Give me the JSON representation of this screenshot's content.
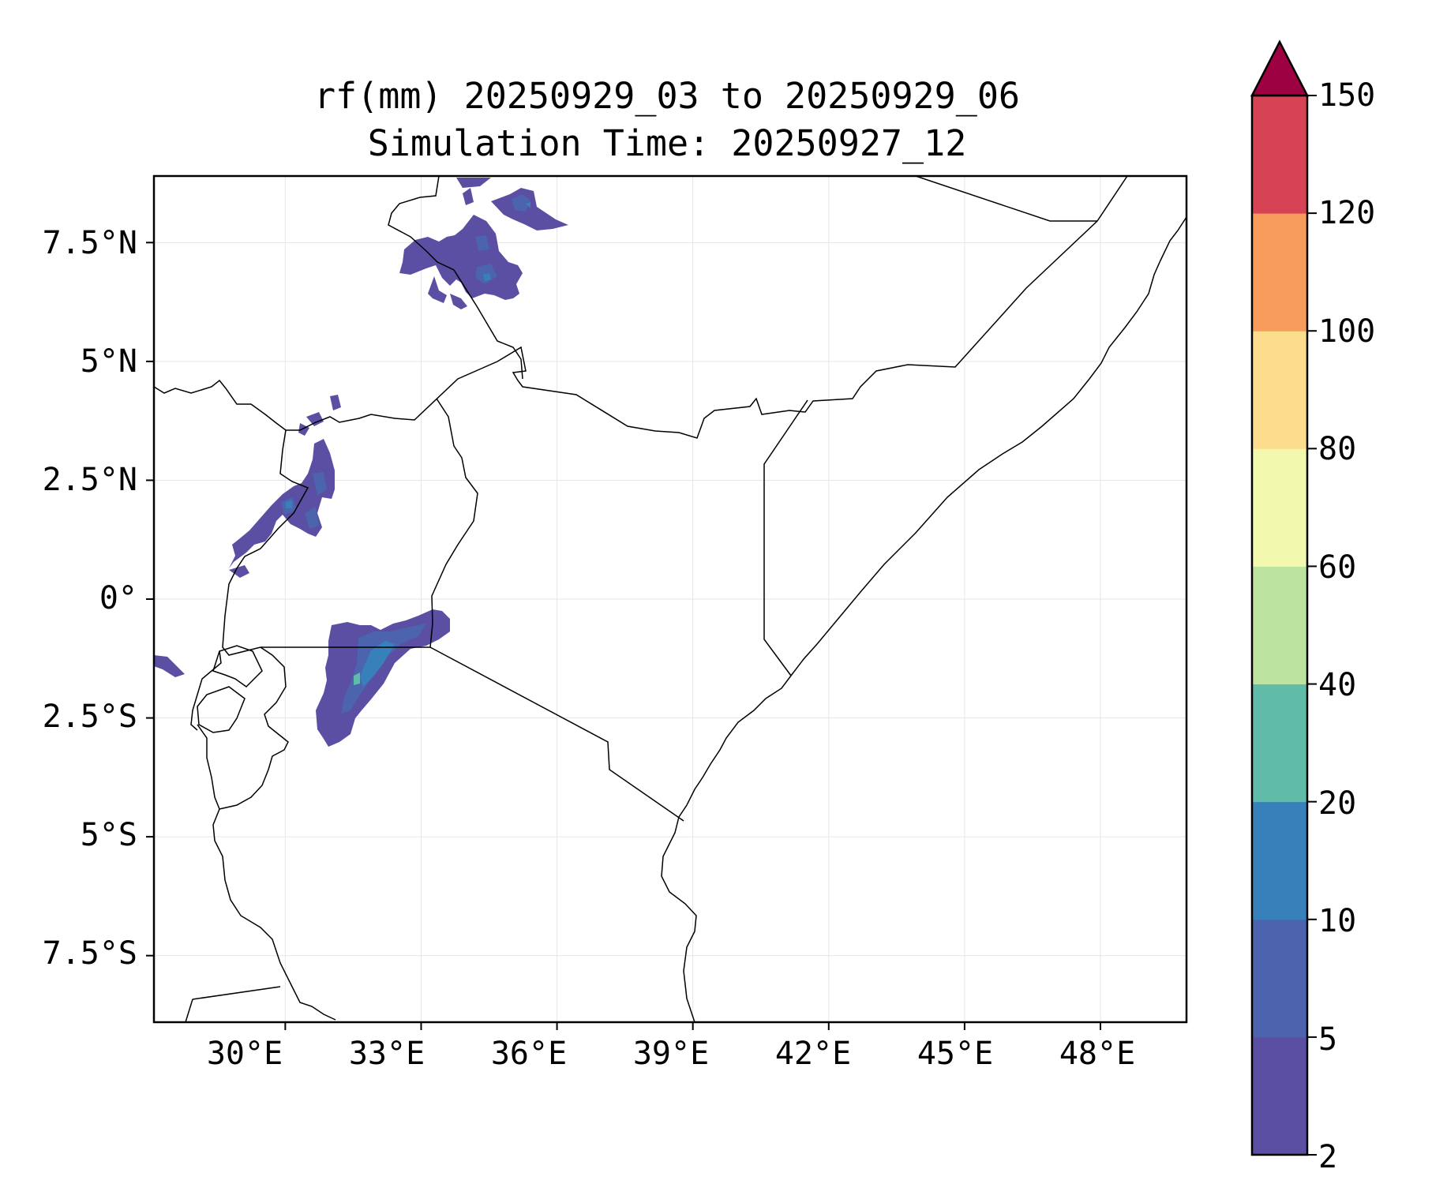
{
  "title": {
    "line1": "rf(mm) 20250929_03 to 20250929_06",
    "line2": "Simulation Time: 20250927_12"
  },
  "map": {
    "extent_lon": [
      27.1,
      49.9
    ],
    "extent_lat": [
      -8.9,
      8.9
    ],
    "lat_ticks": [
      {
        "value": 7.5,
        "label": "7.5°N"
      },
      {
        "value": 5,
        "label": "5°N"
      },
      {
        "value": 2.5,
        "label": "2.5°N"
      },
      {
        "value": 0,
        "label": "0°"
      },
      {
        "value": -2.5,
        "label": "2.5°S"
      },
      {
        "value": -5,
        "label": "5°S"
      },
      {
        "value": -7.5,
        "label": "7.5°S"
      }
    ],
    "lon_ticks": [
      {
        "value": 30,
        "label": "30°E"
      },
      {
        "value": 33,
        "label": "33°E"
      },
      {
        "value": 36,
        "label": "36°E"
      },
      {
        "value": 39,
        "label": "39°E"
      },
      {
        "value": 42,
        "label": "42°E"
      },
      {
        "value": 45,
        "label": "45°E"
      },
      {
        "value": 48,
        "label": "48°E"
      }
    ],
    "rain_areas": [
      {
        "name": "south-sudan-ethiopia-rain",
        "level": "2-5",
        "color": "#5a4fa2"
      },
      {
        "name": "northern-uganda-rain",
        "level": "2-5",
        "color": "#5a4fa2"
      },
      {
        "name": "lake-victoria-rain",
        "level": "2-5",
        "color": "#5a4fa2"
      }
    ]
  },
  "colorbar": {
    "levels": [
      2,
      5,
      10,
      20,
      40,
      60,
      80,
      100,
      120,
      150
    ],
    "labels": [
      "2",
      "5",
      "10",
      "20",
      "40",
      "60",
      "80",
      "100",
      "120",
      "150"
    ],
    "colors": [
      "#5a4fa2",
      "#4c63ae",
      "#3880b9",
      "#60bba8",
      "#bde3a1",
      "#f2f8ae",
      "#fcdd8d",
      "#f89c5b",
      "#d64355"
    ],
    "extend_color": "#9e0142",
    "extend": "max"
  }
}
